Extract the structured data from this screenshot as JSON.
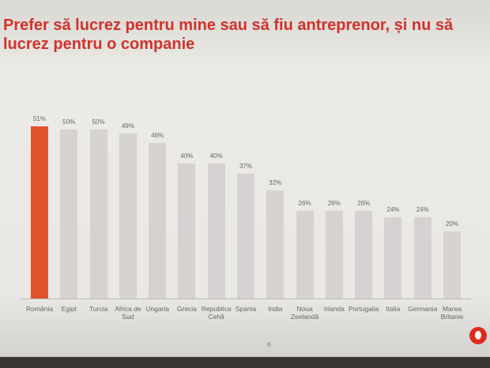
{
  "chart_data": {
    "type": "bar",
    "title": "Prefer să lucrez pentru mine sau să fiu antreprenor, și nu să lucrez pentru o companie",
    "categories": [
      "România",
      "Egipt",
      "Turcia",
      "Africa de Sud",
      "Ungaria",
      "Grecia",
      "Republica Cehă",
      "Spania",
      "India",
      "Noua Zeelandă",
      "Irlanda",
      "Portugalia",
      "Italia",
      "Germania",
      "Marea Britanie"
    ],
    "values": [
      51,
      50,
      50,
      49,
      46,
      40,
      40,
      37,
      32,
      26,
      26,
      26,
      24,
      24,
      20
    ],
    "value_labels": [
      "51%",
      "50%",
      "50%",
      "49%",
      "46%",
      "40%",
      "40%",
      "37%",
      "32%",
      "26%",
      "26%",
      "26%",
      "24%",
      "24%",
      "20%"
    ],
    "colors": [
      "#e0532e",
      "#d6d2d1",
      "#d6d2d1",
      "#d6d2d1",
      "#d6d2d1",
      "#d6d2d1",
      "#d6d2d1",
      "#d6d2d1",
      "#d6d2d1",
      "#d6d2d1",
      "#d6d2d1",
      "#d6d2d1",
      "#d6d2d1",
      "#d6d2d1",
      "#d6d2d1"
    ],
    "page_number": "6"
  }
}
